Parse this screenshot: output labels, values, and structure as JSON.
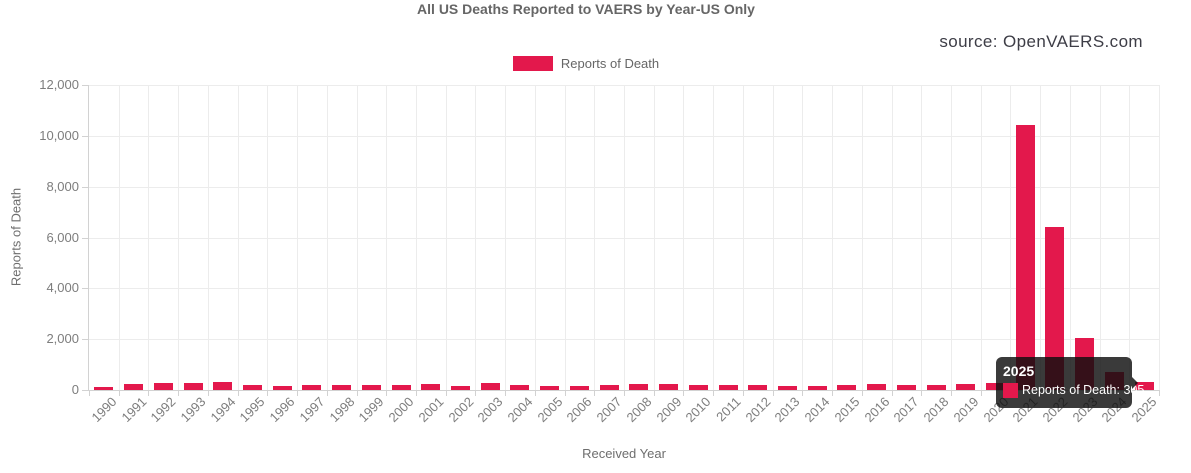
{
  "header": {
    "title": "All US Deaths Reported to VAERS by Year-US Only",
    "source": "source: OpenVAERS.com"
  },
  "legend": {
    "label": "Reports of Death"
  },
  "axes": {
    "x_title": "Received Year",
    "y_title": "Reports of Death"
  },
  "tooltip": {
    "title": "2025",
    "label": "Reports of Death: 305"
  },
  "colors": {
    "bar": "#e3184c",
    "tooltip_bg": "rgba(15,15,15,0.82)"
  },
  "chart_data": {
    "type": "bar",
    "title": "All US Deaths Reported to VAERS by Year-US Only",
    "xlabel": "Received Year",
    "ylabel": "Reports of Death",
    "legend_entries": [
      "Reports of Death"
    ],
    "legend_position": "top",
    "grid": true,
    "ylim": [
      0,
      12000
    ],
    "yticks": [
      0,
      2000,
      4000,
      6000,
      8000,
      10000,
      12000
    ],
    "categories": [
      "1990",
      "1991",
      "1992",
      "1993",
      "1994",
      "1995",
      "1996",
      "1997",
      "1998",
      "1999",
      "2000",
      "2001",
      "2002",
      "2003",
      "2004",
      "2005",
      "2006",
      "2007",
      "2008",
      "2009",
      "2010",
      "2011",
      "2012",
      "2013",
      "2014",
      "2015",
      "2016",
      "2017",
      "2018",
      "2019",
      "2020",
      "2021",
      "2022",
      "2023",
      "2024",
      "2025"
    ],
    "values": [
      110,
      230,
      290,
      290,
      310,
      200,
      160,
      195,
      195,
      195,
      195,
      235,
      155,
      270,
      195,
      160,
      160,
      195,
      235,
      235,
      195,
      215,
      215,
      160,
      160,
      195,
      235,
      190,
      215,
      255,
      260,
      10430,
      6400,
      2030,
      700,
      305
    ],
    "hover": {
      "category": "2025",
      "series": "Reports of Death",
      "value": 305
    }
  }
}
